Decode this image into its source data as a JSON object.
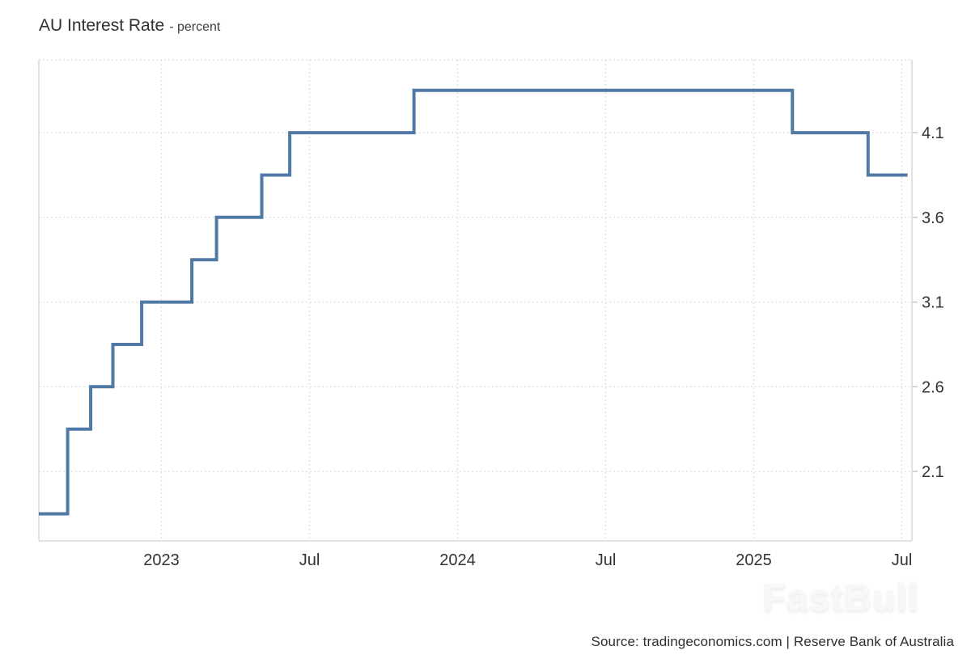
{
  "title": {
    "main": "AU Interest Rate",
    "suffix": "- percent"
  },
  "source": "Source: tradingeconomics.com | Reserve Bank of Australia",
  "watermark": "FastBull",
  "chart_data": {
    "type": "line",
    "subtype": "step-after",
    "title": "AU Interest Rate",
    "ylabel": "percent",
    "xlabel": "",
    "grid": true,
    "legend": "none",
    "line_color": "#5079a5",
    "grid_color": "#e1e1e1",
    "border_color": "#d8d8d8",
    "tick_color": "#c4c4c4",
    "axis_text_color": "#333333",
    "ylim": [
      1.69,
      4.53
    ],
    "xlim": [
      "2022-08-02",
      "2025-07-08"
    ],
    "y_ticks": [
      {
        "value": 4.1,
        "label": "4.1"
      },
      {
        "value": 3.6,
        "label": "3.6"
      },
      {
        "value": 3.1,
        "label": "3.1"
      },
      {
        "value": 2.6,
        "label": "2.6"
      },
      {
        "value": 2.1,
        "label": "2.1"
      }
    ],
    "x_ticks": [
      {
        "date": "2023-01-01",
        "label": "2023"
      },
      {
        "date": "2023-07-01",
        "label": "Jul"
      },
      {
        "date": "2024-01-01",
        "label": "2024"
      },
      {
        "date": "2024-07-01",
        "label": "Jul"
      },
      {
        "date": "2025-01-01",
        "label": "2025"
      },
      {
        "date": "2025-07-01",
        "label": "Jul"
      }
    ],
    "series": [
      {
        "name": "AU Interest Rate (percent)",
        "points": [
          {
            "date": "2022-08-02",
            "value": 1.85
          },
          {
            "date": "2022-09-07",
            "value": 2.35
          },
          {
            "date": "2022-10-05",
            "value": 2.6
          },
          {
            "date": "2022-11-02",
            "value": 2.85
          },
          {
            "date": "2022-12-07",
            "value": 3.1
          },
          {
            "date": "2023-02-08",
            "value": 3.35
          },
          {
            "date": "2023-03-08",
            "value": 3.6
          },
          {
            "date": "2023-05-03",
            "value": 3.85
          },
          {
            "date": "2023-06-07",
            "value": 4.1
          },
          {
            "date": "2023-11-08",
            "value": 4.35
          },
          {
            "date": "2025-02-18",
            "value": 4.1
          },
          {
            "date": "2025-05-20",
            "value": 3.85
          },
          {
            "date": "2025-07-08",
            "value": 3.85
          }
        ]
      }
    ]
  }
}
